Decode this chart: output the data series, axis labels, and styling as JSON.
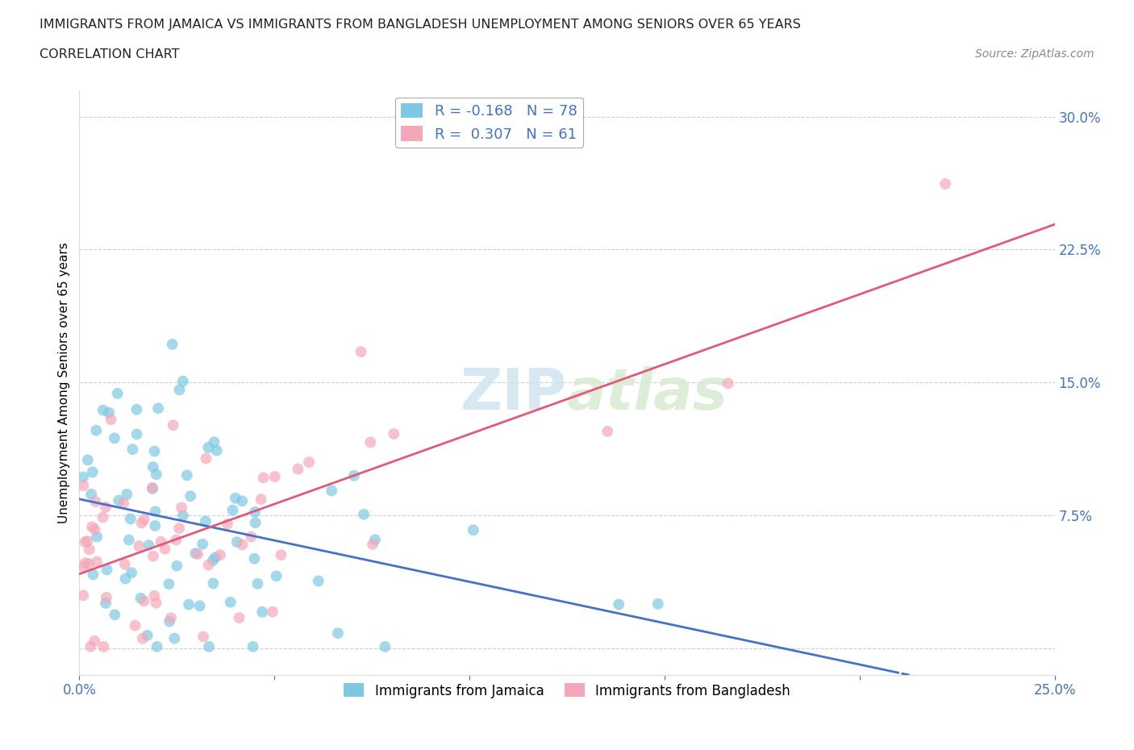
{
  "title_line1": "IMMIGRANTS FROM JAMAICA VS IMMIGRANTS FROM BANGLADESH UNEMPLOYMENT AMONG SENIORS OVER 65 YEARS",
  "title_line2": "CORRELATION CHART",
  "source": "Source: ZipAtlas.com",
  "ylabel": "Unemployment Among Seniors over 65 years",
  "xlim": [
    0.0,
    0.25
  ],
  "ylim": [
    -0.015,
    0.315
  ],
  "yticks": [
    0.0,
    0.075,
    0.15,
    0.225,
    0.3
  ],
  "xticks": [
    0.0,
    0.25
  ],
  "jamaica_color": "#7ec8e3",
  "jamaica_line_color": "#4472c4",
  "bangladesh_color": "#f4a7b9",
  "bangladesh_line_color": "#e05a7a",
  "jamaica_R": -0.168,
  "jamaica_N": 78,
  "bangladesh_R": 0.307,
  "bangladesh_N": 61,
  "watermark_text": "ZIPatlas",
  "grid_color": "#bbbbbb",
  "legend_label_jamaica": "Immigrants from Jamaica",
  "legend_label_bangladesh": "Immigrants from Bangladesh",
  "tick_color": "#4472c4",
  "title_color": "#222222",
  "source_color": "#888888"
}
